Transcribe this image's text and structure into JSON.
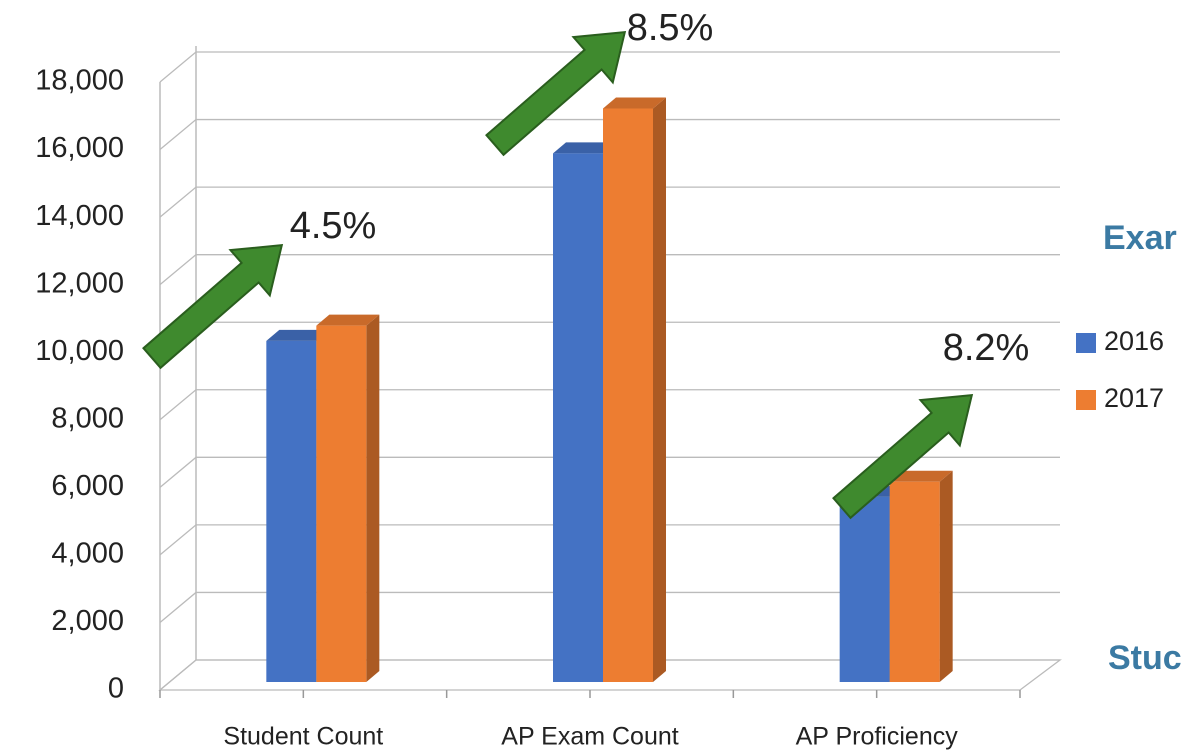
{
  "chart_data": {
    "type": "bar3d",
    "categories": [
      "Student Count",
      "AP Exam Count",
      "AP Proficiency"
    ],
    "series": [
      {
        "name": "2016",
        "color": "#4472c4",
        "values": [
          10100,
          15650,
          5480
        ]
      },
      {
        "name": "2017",
        "color": "#ed7d31",
        "values": [
          10550,
          16980,
          5930
        ]
      }
    ],
    "ylim": [
      0,
      18000
    ],
    "yticks": [
      0,
      {
        "value": 2000,
        "label": "2,000"
      },
      {
        "value": 4000,
        "label": "4,000"
      },
      {
        "value": 6000,
        "label": "6,000"
      },
      {
        "value": 8000,
        "label": "8,000"
      },
      {
        "value": 10000,
        "label": "10,000"
      },
      {
        "value": 12000,
        "label": "12,000"
      },
      {
        "value": 14000,
        "label": "14,000"
      },
      {
        "value": 16000,
        "label": "16,000"
      },
      {
        "value": 18000,
        "label": "18,000"
      }
    ],
    "grid": true,
    "legend": "right",
    "annotations": [
      "4.5%",
      "8.5%",
      "8.2%",
      "Exar",
      "Stuc"
    ]
  }
}
